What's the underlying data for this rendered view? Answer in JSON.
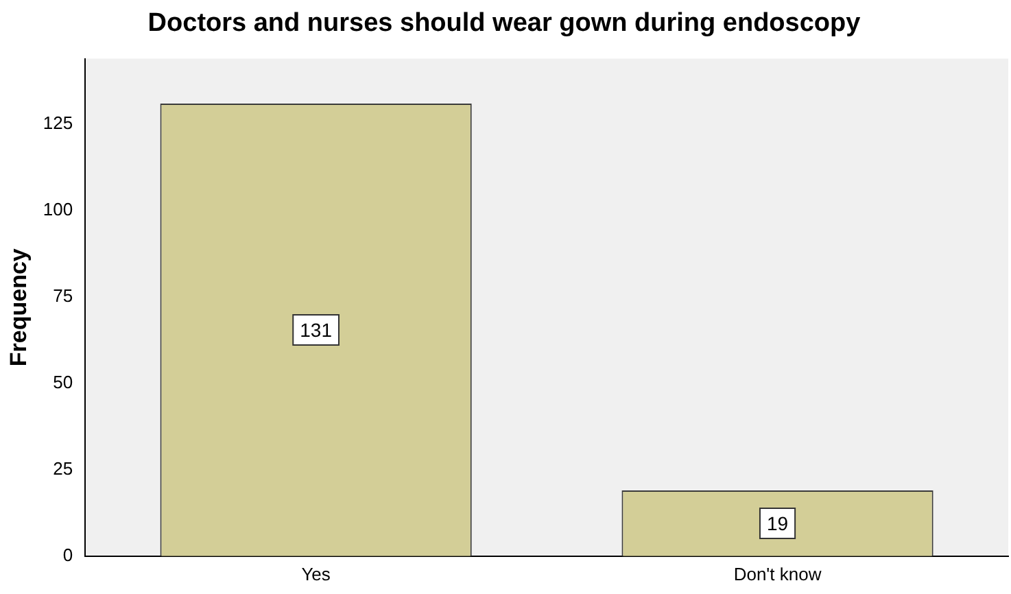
{
  "chart_data": {
    "type": "bar",
    "title": "Doctors and nurses should wear gown during endoscopy",
    "ylabel": "Frequency",
    "categories": [
      "Yes",
      "Don't know"
    ],
    "values": [
      131,
      19
    ],
    "color": "#d3ce97",
    "ylim": [
      0,
      144
    ],
    "yticks": [
      0,
      25,
      50,
      75,
      100,
      125
    ],
    "grid": false,
    "data_labels": true,
    "legend": false
  }
}
